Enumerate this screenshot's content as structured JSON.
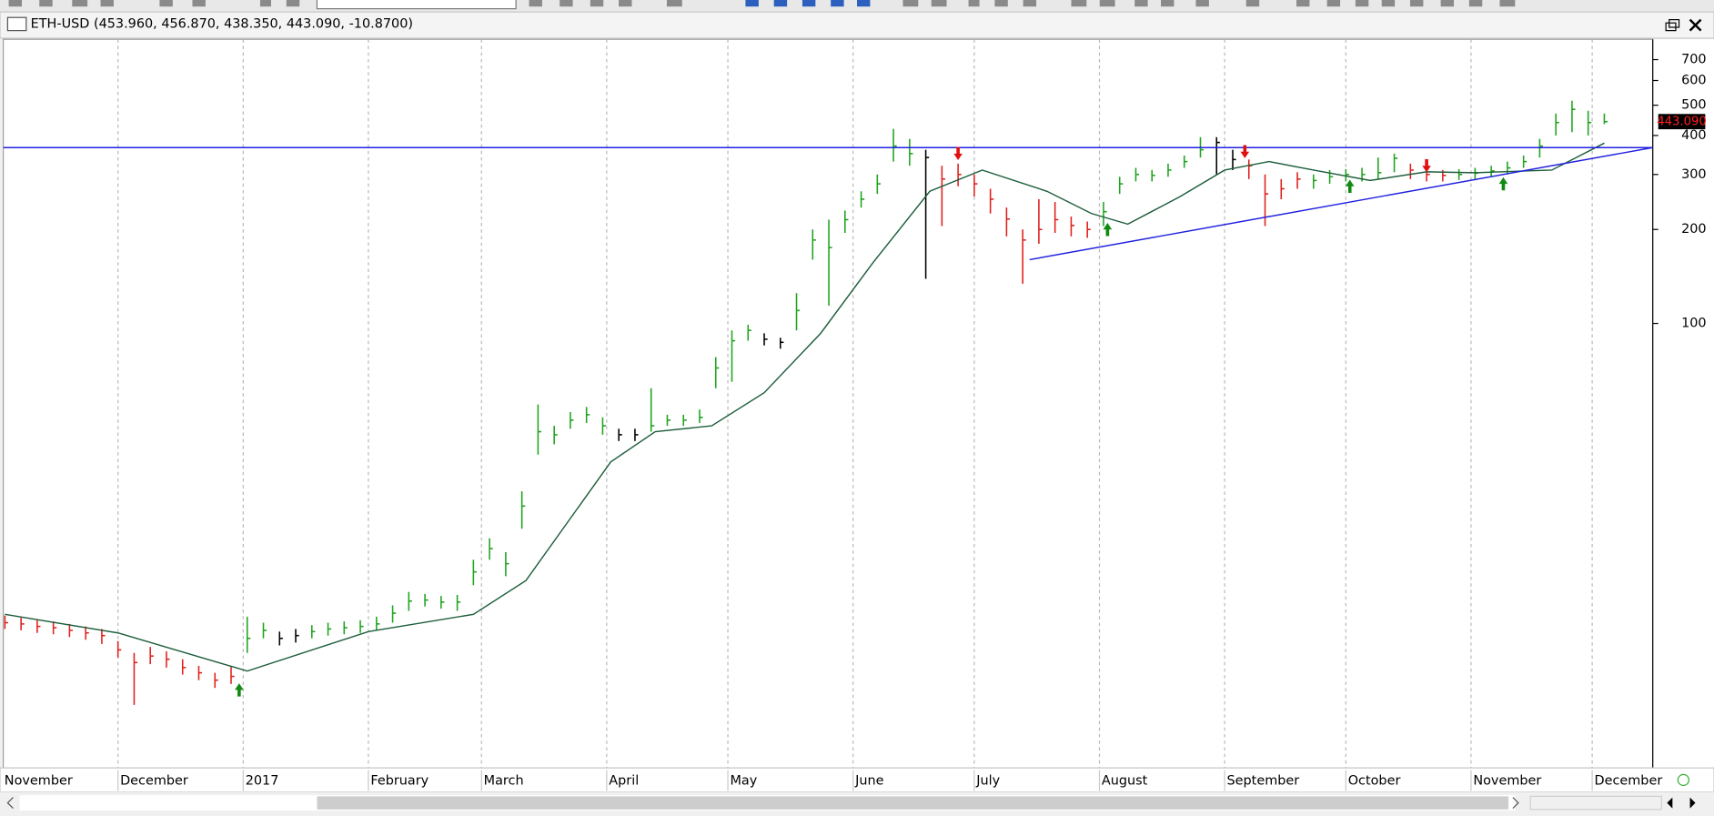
{
  "chart_data": {
    "type": "ohlc",
    "title": "ETH-USD (453.960, 456.870, 438.350, 443.090, -10.8700)",
    "log_scale": true,
    "grid_x": true,
    "xlim": [
      1.6,
      410
    ],
    "xticks": [
      {
        "value": 0,
        "label": "November"
      },
      {
        "value": 30,
        "label": "December"
      },
      {
        "value": 61,
        "label": "2017"
      },
      {
        "value": 92,
        "label": "February"
      },
      {
        "value": 120,
        "label": "March"
      },
      {
        "value": 151,
        "label": "April"
      },
      {
        "value": 181,
        "label": "May"
      },
      {
        "value": 212,
        "label": "June"
      },
      {
        "value": 242,
        "label": "July"
      },
      {
        "value": 273,
        "label": "August"
      },
      {
        "value": 304,
        "label": "September"
      },
      {
        "value": 334,
        "label": "October"
      },
      {
        "value": 365,
        "label": "November"
      },
      {
        "value": 395,
        "label": "December"
      }
    ],
    "ylim": [
      3.86,
      800
    ],
    "yticks": [
      100,
      200,
      300,
      400,
      500,
      600,
      700
    ],
    "trend_colors": {
      "u": "#1fa31f",
      "d": "#e0201c",
      "n": "#000000"
    },
    "x": [
      2,
      6,
      10,
      14,
      18,
      22,
      26,
      30,
      34,
      38,
      42,
      46,
      50,
      54,
      58,
      62,
      66,
      70,
      74,
      78,
      82,
      86,
      90,
      94,
      98,
      102,
      106,
      110,
      114,
      118,
      122,
      126,
      130,
      134,
      138,
      142,
      146,
      150,
      154,
      158,
      162,
      166,
      170,
      174,
      178,
      182,
      186,
      190,
      194,
      198,
      202,
      206,
      210,
      214,
      218,
      222,
      226,
      230,
      234,
      238,
      242,
      246,
      250,
      254,
      258,
      262,
      266,
      270,
      274,
      278,
      282,
      286,
      290,
      294,
      298,
      302,
      306,
      310,
      314,
      318,
      322,
      326,
      330,
      334,
      338,
      342,
      346,
      350,
      354,
      358,
      362,
      366,
      370,
      374,
      378,
      382,
      386,
      390,
      394,
      398
    ],
    "high": [
      11.6,
      11.4,
      11.2,
      11.1,
      10.9,
      10.7,
      10.5,
      9.6,
      8.8,
      9.2,
      8.9,
      8.4,
      8.0,
      7.6,
      8.0,
      11.5,
      11.0,
      10.3,
      10.5,
      10.8,
      11.0,
      11.1,
      11.2,
      11.5,
      12.5,
      13.8,
      13.6,
      13.4,
      13.5,
      17.5,
      20.5,
      18.5,
      29,
      55,
      47,
      52,
      54,
      50,
      46,
      46,
      62,
      51,
      51,
      53,
      78,
      95,
      99,
      93,
      90,
      125,
      200,
      215,
      230,
      265,
      300,
      420,
      390,
      360,
      320,
      325,
      300,
      270,
      235,
      200,
      250,
      245,
      220,
      212,
      245,
      295,
      315,
      310,
      325,
      345,
      395,
      395,
      360,
      335,
      300,
      290,
      305,
      300,
      310,
      312,
      315,
      340,
      350,
      325,
      315,
      310,
      312,
      315,
      320,
      330,
      345,
      390,
      470,
      517,
      480,
      470
    ],
    "low": [
      10.5,
      10.4,
      10.2,
      10.1,
      9.9,
      9.7,
      9.4,
      8.5,
      6.0,
      8.1,
      7.9,
      7.5,
      7.2,
      6.8,
      7.0,
      8.8,
      9.8,
      9.3,
      9.5,
      9.8,
      10.0,
      10.1,
      10.2,
      10.4,
      11.0,
      12.0,
      12.4,
      12.2,
      12.0,
      14.5,
      17.5,
      15.5,
      22,
      38,
      41,
      46,
      48,
      44,
      42,
      42,
      45,
      47,
      47,
      48,
      62,
      65,
      88,
      85,
      83,
      95,
      160,
      114,
      195,
      235,
      260,
      330,
      320,
      139,
      205,
      275,
      255,
      225,
      190,
      134,
      180,
      195,
      190,
      188,
      205,
      260,
      285,
      285,
      295,
      315,
      340,
      300,
      310,
      290,
      205,
      250,
      270,
      270,
      280,
      285,
      285,
      290,
      305,
      290,
      285,
      285,
      288,
      290,
      295,
      300,
      315,
      340,
      400,
      410,
      400,
      435
    ],
    "close": [
      11,
      10.9,
      10.7,
      10.6,
      10.4,
      10.2,
      10.0,
      9.0,
      8.2,
      8.6,
      8.4,
      7.9,
      7.6,
      7.2,
      7.4,
      9.8,
      10.4,
      9.8,
      10.0,
      10.3,
      10.5,
      10.6,
      10.7,
      10.9,
      11.8,
      12.9,
      13.0,
      12.8,
      12.8,
      16.0,
      19.0,
      17.0,
      26.0,
      45.0,
      44.0,
      49.0,
      51.0,
      47.0,
      44.0,
      44.0,
      47,
      49,
      49,
      50,
      72,
      88,
      95,
      89,
      87,
      110,
      185,
      175,
      215,
      250,
      280,
      370,
      350,
      340,
      290,
      300,
      280,
      250,
      216,
      185,
      200,
      215,
      206,
      200,
      228,
      280,
      300,
      298,
      310,
      330,
      360,
      380,
      335,
      320,
      260,
      270,
      290,
      287,
      295,
      300,
      300,
      304,
      338,
      310,
      300,
      298,
      300,
      303,
      308,
      315,
      330,
      370,
      440,
      485,
      440,
      443
    ],
    "trend": [
      "d",
      "d",
      "d",
      "d",
      "d",
      "d",
      "d",
      "d",
      "d",
      "d",
      "d",
      "d",
      "d",
      "d",
      "d",
      "u",
      "u",
      "n",
      "n",
      "u",
      "u",
      "u",
      "u",
      "u",
      "u",
      "u",
      "u",
      "u",
      "u",
      "u",
      "u",
      "u",
      "u",
      "u",
      "u",
      "u",
      "u",
      "u",
      "n",
      "n",
      "u",
      "u",
      "u",
      "u",
      "u",
      "u",
      "u",
      "n",
      "n",
      "u",
      "u",
      "u",
      "u",
      "u",
      "u",
      "u",
      "u",
      "n",
      "d",
      "d",
      "d",
      "d",
      "d",
      "d",
      "d",
      "d",
      "d",
      "d",
      "u",
      "u",
      "u",
      "u",
      "u",
      "u",
      "u",
      "n",
      "n",
      "d",
      "d",
      "d",
      "d",
      "u",
      "u",
      "u",
      "u",
      "u",
      "u",
      "d",
      "d",
      "d",
      "u",
      "u",
      "u",
      "u",
      "u",
      "u",
      "u",
      "u",
      "u",
      "u"
    ],
    "ma": {
      "color": "#1e5e3c",
      "x": [
        2,
        30,
        62,
        92,
        118,
        131,
        152,
        163,
        177,
        190,
        204,
        217,
        231,
        244,
        260,
        271,
        280,
        293,
        304,
        315,
        326,
        340,
        354,
        366,
        385,
        398
      ],
      "values": [
        11.7,
        10.2,
        7.7,
        10.3,
        11.7,
        15,
        36,
        45,
        47,
        60,
        93,
        157,
        265,
        310,
        265,
        225,
        208,
        255,
        310,
        330,
        310,
        287,
        306,
        304,
        310,
        378
      ]
    },
    "trendlines": [
      {
        "color": "#2020e0",
        "x": [
          1.6,
          410
        ],
        "values": [
          366,
          366
        ]
      },
      {
        "color": "#2020e0",
        "x": [
          255.7,
          410
        ],
        "values": [
          160,
          366
        ]
      }
    ],
    "signals": {
      "up": {
        "color": "#108a10",
        "x": [
          60,
          275,
          335,
          373
        ],
        "values": [
          6.7,
          200,
          275,
          280
        ]
      },
      "down": {
        "color": "#e01010",
        "x": [
          238,
          309,
          354
        ],
        "values": [
          350,
          355,
          320
        ]
      }
    },
    "last_price": {
      "value": 443.09,
      "label": "443.090"
    }
  }
}
